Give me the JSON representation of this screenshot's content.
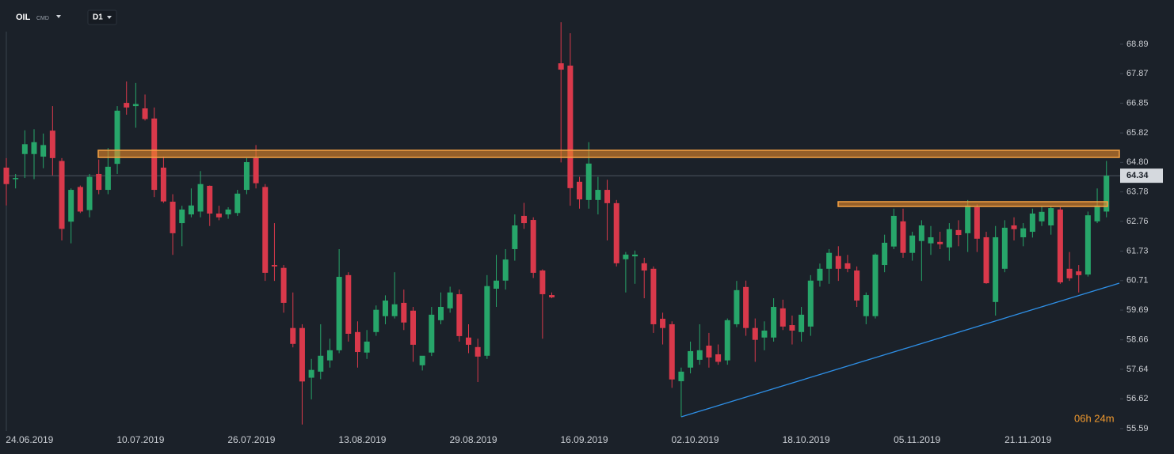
{
  "chart_data": {
    "type": "candlestick",
    "symbol": "OIL",
    "symbol_type": "CMD",
    "timeframe": "D1",
    "countdown": "06h 24m",
    "current_price": 64.34,
    "up_color": "#27a66a",
    "down_color": "#d9394b",
    "ylim": [
      54.71,
      70.42
    ],
    "yticks": [
      68.89,
      67.87,
      66.85,
      65.82,
      {
        "value": 64.8,
        "label": "64.80"
      },
      63.78,
      62.76,
      61.73,
      60.71,
      59.69,
      58.66,
      57.64,
      56.62,
      55.59
    ],
    "categories": [
      null,
      null,
      "24.06.2019",
      null,
      null,
      null,
      null,
      null,
      null,
      null,
      null,
      null,
      null,
      null,
      "10.07.2019",
      null,
      null,
      null,
      null,
      null,
      null,
      null,
      null,
      null,
      null,
      null,
      "26.07.2019",
      null,
      null,
      null,
      null,
      null,
      null,
      null,
      null,
      null,
      null,
      null,
      "13.08.2019",
      null,
      null,
      null,
      null,
      null,
      null,
      null,
      null,
      null,
      null,
      null,
      "29.08.2019",
      null,
      null,
      null,
      null,
      null,
      null,
      null,
      null,
      null,
      null,
      null,
      "16.09.2019",
      null,
      null,
      null,
      null,
      null,
      null,
      null,
      null,
      null,
      null,
      null,
      "02.10.2019",
      null,
      null,
      null,
      null,
      null,
      null,
      null,
      null,
      null,
      null,
      null,
      "18.10.2019",
      null,
      null,
      null,
      null,
      null,
      null,
      null,
      null,
      null,
      null,
      null,
      "05.11.2019",
      null,
      null,
      null,
      null,
      null,
      null,
      null,
      null,
      null,
      null,
      null,
      "21.11.2019",
      null,
      null,
      null,
      null,
      null,
      null,
      null,
      null,
      null
    ],
    "open": [
      64.62,
      64.22,
      65.09,
      65.09,
      65.0,
      65.9,
      64.85,
      62.75,
      63.95,
      63.15,
      64.4,
      63.85,
      64.75,
      66.86,
      66.75,
      66.67,
      66.32,
      64.62,
      63.44,
      62.7,
      63.0,
      63.1,
      63.99,
      63.03,
      63.0,
      63.05,
      63.85,
      64.95,
      63.95,
      61.25,
      61.15,
      59.07,
      59.07,
      57.35,
      57.56,
      57.95,
      58.3,
      60.9,
      58.93,
      58.22,
      58.93,
      59.48,
      59.48,
      59.94,
      59.67,
      57.78,
      58.22,
      59.34,
      59.75,
      60.24,
      58.74,
      58.41,
      58.11,
      60.43,
      60.71,
      61.8,
      62.95,
      62.81,
      61.06,
      60.21,
      68.23,
      68.15,
      64.13,
      63.5,
      63.5,
      63.85,
      63.39,
      61.45,
      61.55,
      61.31,
      61.12,
      59.39,
      59.2,
      57.23,
      57.7,
      57.97,
      58.46,
      58.16,
      57.95,
      59.2,
      60.49,
      59.07,
      58.74,
      58.74,
      59.75,
      59.17,
      58.93,
      59.12,
      60.71,
      61.12,
      61.56,
      61.31,
      61.06,
      59.48,
      59.48,
      61.25,
      61.89,
      62.76,
      61.67,
      62.08,
      62.0,
      62.05,
      61.86,
      62.46,
      62.35,
      63.25,
      62.21,
      59.97,
      61.12,
      62.62,
      62.21,
      62.4,
      62.76,
      62.62,
      63.17,
      61.12,
      61.03,
      60.92,
      62.76,
      63.1
    ],
    "high": [
      64.95,
      64.4,
      65.91,
      65.95,
      65.8,
      66.75,
      64.95,
      63.9,
      64.0,
      64.4,
      64.9,
      65.3,
      66.75,
      67.6,
      67.55,
      67.15,
      66.7,
      65.0,
      63.7,
      63.3,
      63.9,
      64.5,
      64.0,
      63.3,
      63.25,
      63.85,
      64.95,
      65.4,
      64.05,
      62.7,
      61.25,
      60.3,
      59.2,
      58.0,
      59.2,
      58.7,
      61.8,
      61.0,
      59.3,
      59.0,
      59.85,
      60.2,
      61.0,
      60.4,
      59.8,
      58.1,
      59.8,
      60.3,
      60.5,
      60.4,
      59.2,
      58.7,
      60.9,
      61.6,
      61.8,
      63.0,
      63.4,
      62.9,
      61.1,
      60.3,
      69.65,
      69.27,
      64.3,
      65.5,
      64.3,
      64.2,
      63.5,
      61.7,
      61.75,
      61.5,
      61.2,
      59.6,
      59.3,
      57.7,
      58.6,
      59.2,
      58.9,
      58.5,
      59.4,
      60.7,
      60.71,
      59.4,
      59.3,
      60.1,
      60.05,
      59.5,
      59.8,
      60.9,
      61.3,
      61.8,
      61.9,
      61.6,
      61.2,
      60.3,
      61.65,
      62.3,
      63.2,
      63.2,
      62.4,
      62.8,
      62.6,
      62.4,
      62.7,
      62.8,
      63.5,
      63.35,
      62.4,
      62.6,
      62.8,
      62.9,
      62.7,
      63.2,
      63.3,
      63.3,
      63.25,
      61.7,
      61.25,
      63.1,
      63.9,
      64.85
    ],
    "low": [
      63.31,
      63.9,
      64.26,
      64.22,
      64.6,
      64.35,
      62.1,
      62.0,
      63.05,
      62.9,
      63.7,
      63.7,
      64.4,
      66.45,
      66.0,
      66.25,
      63.6,
      63.4,
      61.6,
      61.9,
      62.9,
      62.9,
      62.6,
      62.8,
      62.85,
      62.95,
      63.7,
      63.9,
      60.7,
      60.7,
      59.6,
      58.4,
      55.73,
      56.6,
      57.3,
      57.7,
      58.2,
      58.6,
      57.7,
      58.0,
      58.8,
      59.2,
      59.4,
      59.0,
      57.9,
      57.6,
      58.1,
      59.2,
      59.6,
      58.6,
      58.2,
      57.2,
      58.0,
      59.8,
      60.4,
      61.4,
      62.5,
      60.8,
      58.7,
      60.1,
      64.8,
      63.3,
      63.2,
      63.2,
      63.0,
      62.1,
      61.2,
      60.3,
      60.6,
      60.1,
      58.9,
      58.5,
      57.0,
      56.0,
      57.5,
      57.8,
      57.7,
      57.8,
      57.8,
      59.1,
      58.8,
      57.9,
      58.3,
      58.6,
      59.0,
      58.5,
      58.6,
      58.8,
      60.5,
      60.6,
      60.7,
      61.0,
      59.8,
      59.2,
      59.4,
      61.0,
      61.8,
      61.5,
      61.4,
      60.7,
      61.6,
      61.8,
      61.4,
      61.9,
      61.7,
      61.7,
      60.6,
      59.5,
      61.0,
      62.1,
      61.9,
      62.2,
      62.6,
      62.3,
      60.6,
      60.7,
      60.3,
      60.85,
      62.7,
      62.9
    ],
    "close": [
      64.05,
      64.26,
      65.43,
      65.5,
      65.4,
      64.95,
      62.5,
      63.85,
      63.1,
      64.3,
      63.85,
      64.65,
      66.59,
      66.7,
      66.82,
      66.3,
      63.85,
      63.45,
      62.35,
      63.17,
      63.31,
      64.05,
      63.03,
      62.9,
      63.17,
      63.72,
      64.81,
      64.08,
      60.98,
      61.2,
      59.94,
      58.52,
      57.22,
      57.62,
      58.11,
      58.3,
      60.84,
      58.87,
      58.24,
      58.6,
      59.7,
      60.02,
      59.89,
      59.26,
      58.49,
      58.11,
      59.53,
      59.8,
      60.3,
      58.79,
      58.49,
      58.08,
      60.52,
      60.71,
      61.44,
      62.62,
      62.7,
      60.98,
      60.24,
      60.13,
      68.01,
      63.91,
      63.52,
      64.76,
      63.85,
      63.39,
      61.31,
      61.61,
      61.61,
      61.06,
      59.2,
      59.07,
      57.29,
      57.56,
      58.27,
      58.3,
      58.05,
      57.9,
      59.34,
      60.38,
      59.07,
      58.66,
      58.98,
      59.8,
      59.12,
      58.98,
      59.53,
      60.71,
      61.12,
      61.67,
      61.12,
      61.12,
      60.02,
      60.21,
      61.61,
      62.02,
      62.95,
      61.67,
      62.27,
      62.62,
      62.21,
      61.97,
      62.49,
      62.29,
      63.31,
      62.16,
      60.62,
      62.21,
      62.54,
      62.49,
      62.52,
      63.03,
      63.09,
      63.22,
      60.65,
      60.79,
      60.9,
      62.97,
      63.31,
      64.34
    ]
  }
}
